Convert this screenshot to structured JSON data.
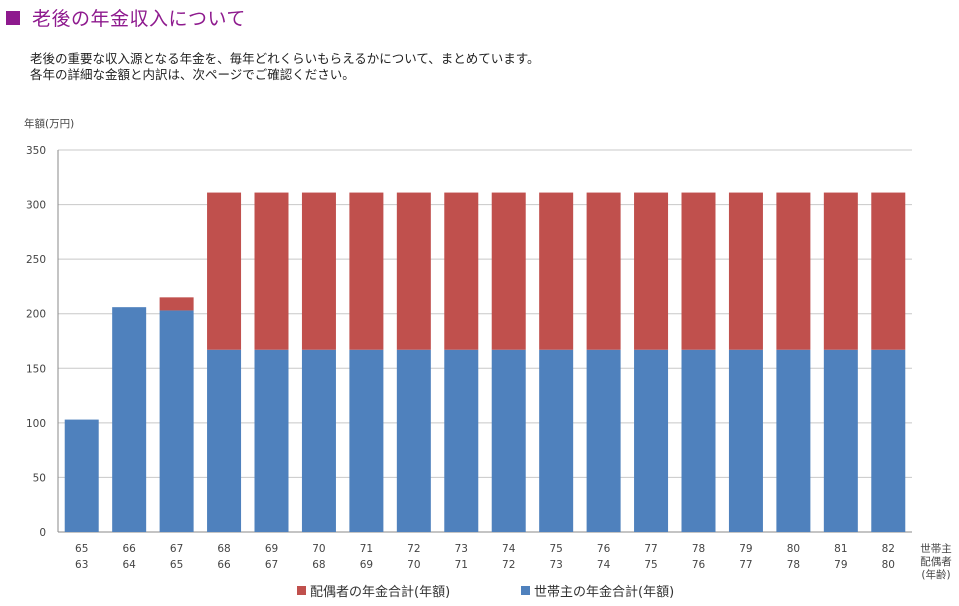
{
  "header": {
    "title": "老後の年金収入について"
  },
  "description": {
    "line1": "老後の重要な収入源となる年金を、毎年どれくらいもらえるかについて、まとめています。",
    "line2": "各年の詳細な金額と内訳は、次ページでご確認ください。"
  },
  "colors": {
    "title": "#8e1a8e",
    "series_householder": "#4f81bd",
    "series_spouse": "#c0504d",
    "grid": "#c8c8c8"
  },
  "chart_data": {
    "type": "bar",
    "stacked": true,
    "ylabel": "年額(万円)",
    "ylim": [
      0,
      350
    ],
    "yticks": [
      0,
      50,
      100,
      150,
      200,
      250,
      300,
      350
    ],
    "grid": true,
    "legend_position": "bottom",
    "xlabel_lines": [
      "世帯主",
      "配偶者",
      "(年齢)"
    ],
    "categories": [
      [
        "65",
        "63"
      ],
      [
        "66",
        "64"
      ],
      [
        "67",
        "65"
      ],
      [
        "68",
        "66"
      ],
      [
        "69",
        "67"
      ],
      [
        "70",
        "68"
      ],
      [
        "71",
        "69"
      ],
      [
        "72",
        "70"
      ],
      [
        "73",
        "71"
      ],
      [
        "74",
        "72"
      ],
      [
        "75",
        "73"
      ],
      [
        "76",
        "74"
      ],
      [
        "77",
        "75"
      ],
      [
        "78",
        "76"
      ],
      [
        "79",
        "77"
      ],
      [
        "80",
        "78"
      ],
      [
        "81",
        "79"
      ],
      [
        "82",
        "80"
      ]
    ],
    "series": [
      {
        "name": "世帯主の年金合計(年額)",
        "color": "#4f81bd",
        "values": [
          103,
          206,
          203,
          167,
          167,
          167,
          167,
          167,
          167,
          167,
          167,
          167,
          167,
          167,
          167,
          167,
          167,
          167
        ]
      },
      {
        "name": "配偶者の年金合計(年額)",
        "color": "#c0504d",
        "values": [
          0,
          0,
          12,
          144,
          144,
          144,
          144,
          144,
          144,
          144,
          144,
          144,
          144,
          144,
          144,
          144,
          144,
          144
        ]
      }
    ],
    "legend_order": [
      "配偶者の年金合計(年額)",
      "世帯主の年金合計(年額)"
    ]
  }
}
